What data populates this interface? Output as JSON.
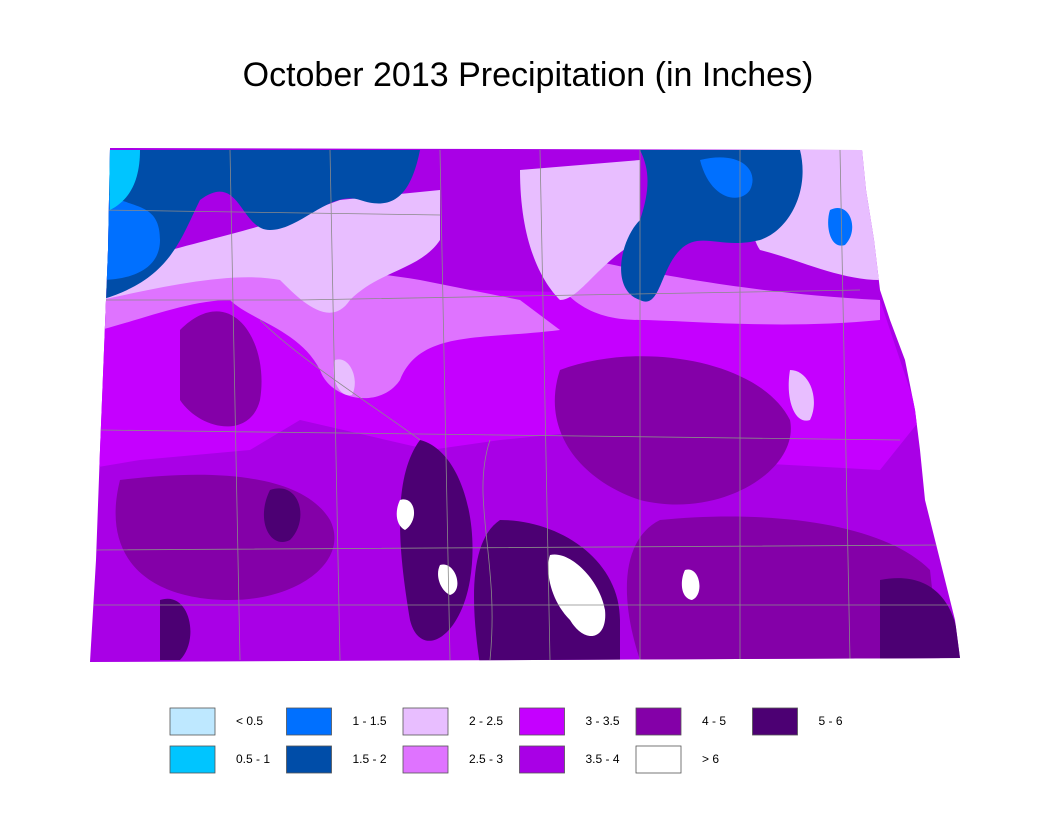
{
  "title": "October 2013 Precipitation (in Inches)",
  "legend": [
    {
      "label": "< 0.5",
      "color": "#bee8ff"
    },
    {
      "label": "0.5 - 1",
      "color": "#00c5ff"
    },
    {
      "label": "1 - 1.5",
      "color": "#0070ff"
    },
    {
      "label": "1.5 - 2",
      "color": "#004da8"
    },
    {
      "label": "2 - 2.5",
      "color": "#e8beff"
    },
    {
      "label": "2.5 - 3",
      "color": "#df73ff"
    },
    {
      "label": "3 - 3.5",
      "color": "#c500ff"
    },
    {
      "label": "3.5 - 4",
      "color": "#a900e6"
    },
    {
      "label": "4 - 5",
      "color": "#8400a8"
    },
    {
      "label": "> 6",
      "color": "#ffffff"
    },
    {
      "label": "5 - 6",
      "color": "#4c0073"
    }
  ]
}
